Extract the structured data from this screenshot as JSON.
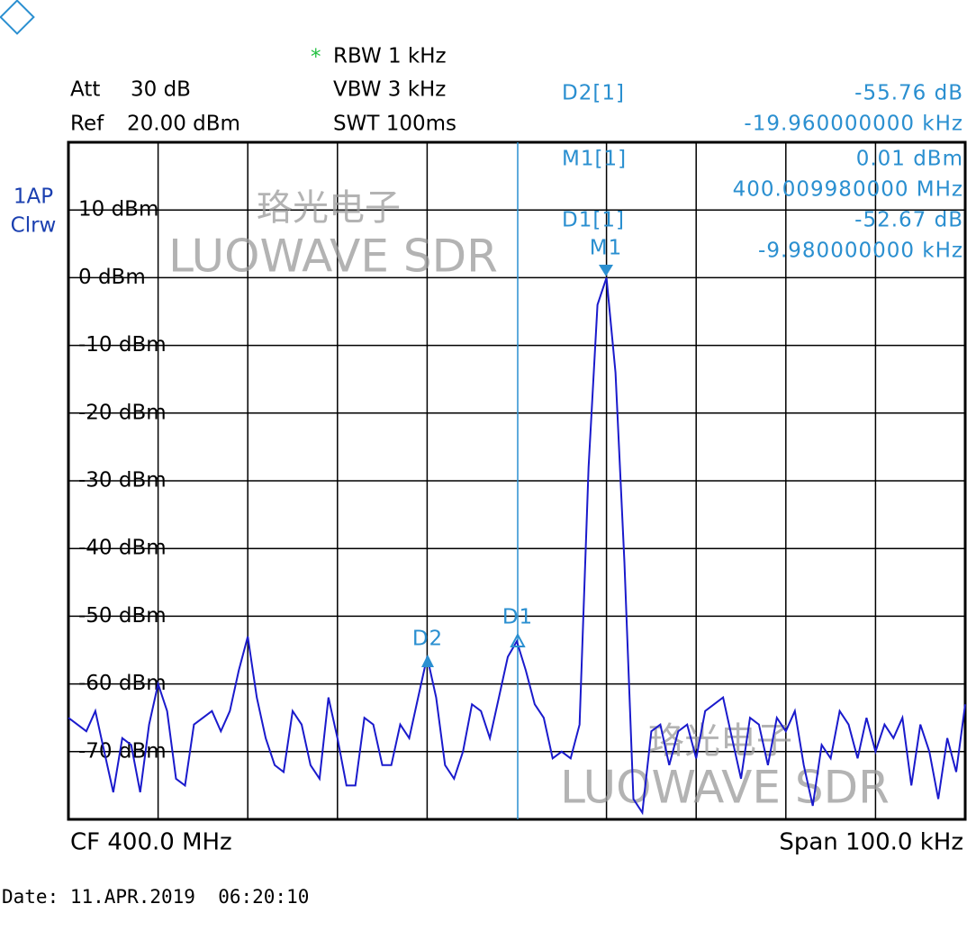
{
  "chart_data": {
    "type": "line",
    "color": "#1a1acc",
    "values": [
      -65,
      -66,
      -67,
      -64,
      -70,
      -76,
      -68,
      -69,
      -76,
      -66,
      -60,
      -64,
      -74,
      -75,
      -66,
      -65,
      -64,
      -67,
      -64,
      -58,
      -53,
      -62,
      -68,
      -72,
      -73,
      -64,
      -66,
      -72,
      -74,
      -62,
      -68,
      -75,
      -75,
      -65,
      -66,
      -72,
      -72,
      -66,
      -68,
      -62,
      -56,
      -62,
      -72,
      -74,
      -70,
      -63,
      -64,
      -68,
      -62,
      -56,
      -53.7,
      -58,
      -63,
      -65,
      -71,
      -70,
      -71,
      -66,
      -28,
      -4,
      0,
      -14,
      -42,
      -77,
      -79,
      -67,
      -66,
      -72,
      -67,
      -66,
      -71,
      -64,
      -63,
      -62,
      -68,
      -74,
      -65,
      -66,
      -72,
      -65,
      -67,
      -64,
      -72,
      -78,
      -69,
      -71,
      -64,
      -66,
      -71,
      -65,
      -70,
      -66,
      -68,
      -65,
      -75,
      -66,
      -70,
      -77,
      -68,
      -73,
      -63
    ],
    "ylim": [
      -80,
      20
    ],
    "yticks": [
      {
        "value": 10,
        "label": "10 dBm"
      },
      {
        "value": 0,
        "label": "0 dBm"
      },
      {
        "value": -10,
        "label": "-10 dBm"
      },
      {
        "value": -20,
        "label": "-20 dBm"
      },
      {
        "value": -30,
        "label": "-30 dBm"
      },
      {
        "value": -40,
        "label": "-40 dBm"
      },
      {
        "value": -50,
        "label": "-50 dBm"
      },
      {
        "value": -60,
        "label": "-60 dBm"
      },
      {
        "value": -70,
        "label": "-70 dBm"
      }
    ],
    "grid": true
  },
  "header": {
    "att_label": "Att",
    "att": "30 dB",
    "ref_label": "Ref",
    "ref": "20.00 dBm",
    "star": "*",
    "rbw": "RBW 1 kHz",
    "vbw": "VBW 3 kHz",
    "swt": "SWT 100ms",
    "trace_mode": "1AP",
    "trace_detect": "Clrw"
  },
  "markers": {
    "d2_name": "D2[1]",
    "d2_level": "-55.76 dB",
    "d2_freq": "-19.960000000 kHz",
    "m1_name": "M1[1]",
    "m1_level": "0.01 dBm",
    "m1_freq": "400.009980000 MHz",
    "d1_name": "D1[1]",
    "d1_level": "-52.67 dB",
    "d1_freq": "-9.980000000 kHz",
    "m1_tag": "M1",
    "d1_tag": "D1",
    "d2_tag": "D2"
  },
  "footer": {
    "cf": "CF 400.0 MHz",
    "span": "Span 100.0 kHz",
    "date": "Date: 11.APR.2019  06:20:10"
  },
  "watermark": {
    "cn": "珞光电子",
    "en": "LUOWAVE SDR"
  }
}
